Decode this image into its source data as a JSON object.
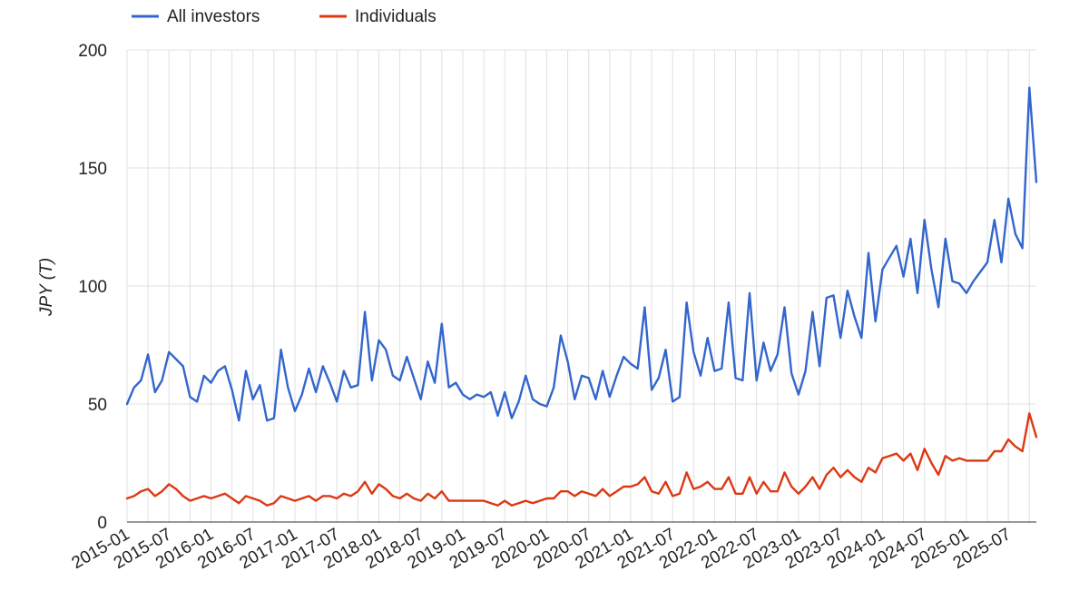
{
  "chart_data": {
    "type": "line",
    "title": "",
    "xlabel": "",
    "ylabel": "JPY (T)",
    "ylim": [
      0,
      200
    ],
    "yticks": [
      0,
      50,
      100,
      150,
      200
    ],
    "x_tick_labels": [
      "2015-01",
      "2015-07",
      "2016-01",
      "2016-07",
      "2017-01",
      "2017-07",
      "2018-01",
      "2018-07",
      "2019-01",
      "2019-07",
      "2020-01",
      "2020-07",
      "2021-01",
      "2021-07",
      "2022-01",
      "2022-07",
      "2023-01",
      "2023-07",
      "2024-01",
      "2024-07",
      "2025-01",
      "2025-07"
    ],
    "start_month": "2015-01",
    "grid": true,
    "legend_position": "top-left",
    "series": [
      {
        "name": "All investors",
        "color": "#3366cc",
        "values": [
          50,
          57,
          60,
          71,
          55,
          60,
          72,
          69,
          66,
          53,
          51,
          62,
          59,
          64,
          66,
          56,
          43,
          64,
          52,
          58,
          43,
          44,
          73,
          57,
          47,
          54,
          65,
          55,
          66,
          59,
          51,
          64,
          57,
          58,
          89,
          60,
          77,
          73,
          62,
          60,
          70,
          61,
          52,
          68,
          59,
          84,
          57,
          59,
          54,
          52,
          54,
          53,
          55,
          45,
          55,
          44,
          51,
          62,
          52,
          50,
          49,
          57,
          79,
          68,
          52,
          62,
          61,
          52,
          64,
          53,
          62,
          70,
          67,
          65,
          91,
          56,
          61,
          73,
          51,
          53,
          93,
          72,
          62,
          78,
          64,
          65,
          93,
          61,
          60,
          97,
          60,
          76,
          64,
          71,
          91,
          63,
          54,
          64,
          89,
          66,
          95,
          96,
          78,
          98,
          87,
          78,
          114,
          85,
          107,
          112,
          117,
          104,
          120,
          97,
          128,
          107,
          91,
          120,
          102,
          101,
          97,
          102,
          106,
          110,
          128,
          110,
          137,
          122,
          116,
          184,
          144
        ]
      },
      {
        "name": "Individuals",
        "color": "#dc3912",
        "values": [
          10,
          11,
          13,
          14,
          11,
          13,
          16,
          14,
          11,
          9,
          10,
          11,
          10,
          11,
          12,
          10,
          8,
          11,
          10,
          9,
          7,
          8,
          11,
          10,
          9,
          10,
          11,
          9,
          11,
          11,
          10,
          12,
          11,
          13,
          17,
          12,
          16,
          14,
          11,
          10,
          12,
          10,
          9,
          12,
          10,
          13,
          9,
          9,
          9,
          9,
          9,
          9,
          8,
          7,
          9,
          7,
          8,
          9,
          8,
          9,
          10,
          10,
          13,
          13,
          11,
          13,
          12,
          11,
          14,
          11,
          13,
          15,
          15,
          16,
          19,
          13,
          12,
          17,
          11,
          12,
          21,
          14,
          15,
          17,
          14,
          14,
          19,
          12,
          12,
          19,
          12,
          17,
          13,
          13,
          21,
          15,
          12,
          15,
          19,
          14,
          20,
          23,
          19,
          22,
          19,
          17,
          23,
          21,
          27,
          28,
          29,
          26,
          29,
          22,
          31,
          25,
          20,
          28,
          26,
          27,
          26,
          26,
          26,
          26,
          30,
          30,
          35,
          32,
          30,
          46,
          36
        ]
      }
    ]
  }
}
